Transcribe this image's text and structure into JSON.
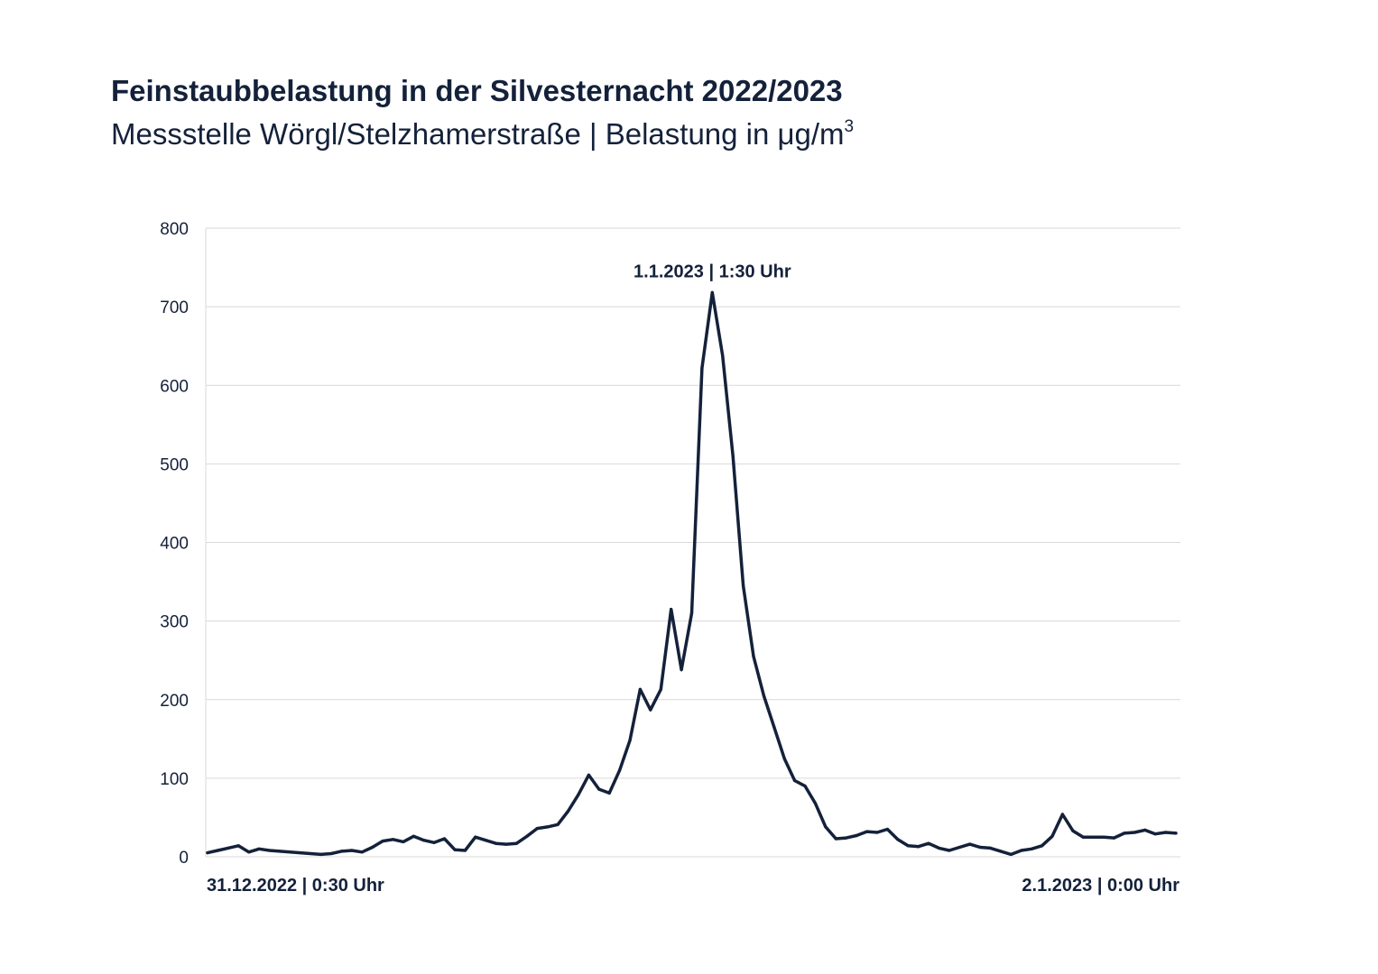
{
  "title": "Feinstaubbelastung in der Silvesternacht 2022/2023",
  "subtitle_main": "Messstelle Wörgl/Stelzhamerstraße | Belastung in μg/m",
  "subtitle_sup": "3",
  "colors": {
    "line": "#14213a",
    "grid": "#d9d9d9",
    "text": "#14213a"
  },
  "chart_data": {
    "type": "line",
    "title": "Feinstaubbelastung in der Silvesternacht 2022/2023",
    "ylabel": "Belastung in μg/m³",
    "ylim": [
      0,
      800
    ],
    "yticks": [
      0,
      100,
      200,
      300,
      400,
      500,
      600,
      700,
      800
    ],
    "grid": true,
    "x_start_label": "31.12.2022 | 0:30 Uhr",
    "x_end_label": "2.1.2023 | 0:00 Uhr",
    "peak_label": "1.1.2023 | 1:30 Uhr",
    "peak_index": 49,
    "series": [
      {
        "values": [
          5,
          8,
          11,
          14,
          6,
          10,
          8,
          7,
          6,
          5,
          4,
          3,
          4,
          7,
          8,
          6,
          12,
          20,
          22,
          19,
          26,
          21,
          18,
          23,
          9,
          8,
          25,
          21,
          17,
          16,
          17,
          26,
          36,
          38,
          41,
          58,
          79,
          104,
          86,
          81,
          110,
          148,
          213,
          187,
          213,
          315,
          238,
          310,
          622,
          718,
          638,
          510,
          345,
          255,
          205,
          165,
          125,
          97,
          90,
          68,
          38,
          23,
          24,
          27,
          32,
          31,
          35,
          22,
          14,
          13,
          17,
          11,
          8,
          12,
          16,
          12,
          11,
          7,
          3,
          8,
          10,
          14,
          26,
          54,
          33,
          25,
          25,
          25,
          24,
          30,
          31,
          34,
          29,
          31,
          30
        ]
      }
    ]
  }
}
